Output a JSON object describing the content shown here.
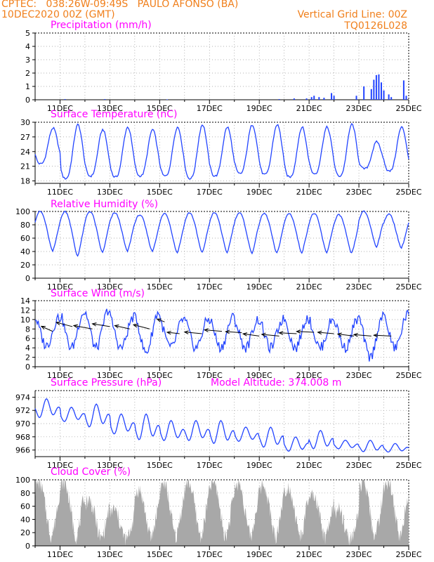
{
  "header": {
    "line1_left": "CPTEC:   038:26W-09:49S   PAULO AFONSO (BA)",
    "line2_left": "10DEC2020 00Z (GMT)",
    "line1_right": "Vertical Grid Line: 00Z",
    "line2_right": "TQ0126L028",
    "color": "#f07f1b"
  },
  "colors": {
    "title": "#ff00ff",
    "series": "#2244ff",
    "bars": "#2244ff",
    "cloud": "#a8a8a8",
    "wind_arrows": "#000000"
  },
  "date_ticks": [
    "11DEC",
    "13DEC",
    "15DEC",
    "17DEC",
    "19DEC",
    "21DEC",
    "23DEC",
    "25DEC"
  ],
  "chart_data": [
    {
      "id": "precip",
      "type": "bar",
      "title": "Precipitation (mm/h)",
      "x_start": "10DEC2020 00Z",
      "x_end": "25DEC2020 00Z",
      "ylim": [
        0,
        5
      ],
      "yticks": [
        0,
        1,
        2,
        3,
        4,
        5
      ],
      "events": [
        {
          "day": 11.2,
          "value": 0.05
        },
        {
          "day": 12.8,
          "value": 0.05
        },
        {
          "day": 15.3,
          "value": 0.03
        },
        {
          "day": 19.8,
          "value": 0.05
        },
        {
          "day": 20.4,
          "value": 0.1
        },
        {
          "day": 20.9,
          "value": 0.1
        },
        {
          "day": 21.1,
          "value": 0.2
        },
        {
          "day": 21.2,
          "value": 0.3
        },
        {
          "day": 21.4,
          "value": 0.2
        },
        {
          "day": 21.6,
          "value": 0.15
        },
        {
          "day": 21.9,
          "value": 0.5
        },
        {
          "day": 22.0,
          "value": 0.3
        },
        {
          "day": 22.9,
          "value": 0.3
        },
        {
          "day": 23.2,
          "value": 1.0
        },
        {
          "day": 23.5,
          "value": 0.8
        },
        {
          "day": 23.6,
          "value": 1.5
        },
        {
          "day": 23.7,
          "value": 1.85
        },
        {
          "day": 23.8,
          "value": 1.9
        },
        {
          "day": 23.9,
          "value": 1.3
        },
        {
          "day": 24.0,
          "value": 0.7
        },
        {
          "day": 24.2,
          "value": 0.4
        },
        {
          "day": 24.3,
          "value": 0.2
        },
        {
          "day": 24.8,
          "value": 1.45
        },
        {
          "day": 24.9,
          "value": 0.3
        }
      ]
    },
    {
      "id": "temp",
      "type": "line",
      "title": "Surface Temperature (nC)",
      "ylim": [
        17.5,
        30
      ],
      "yticks": [
        18,
        21,
        24,
        27,
        30
      ],
      "daily_max": [
        28.8,
        29.5,
        28.5,
        29.0,
        28.5,
        29.0,
        29.5,
        29.0,
        29.5,
        29.5,
        29.0,
        29.0,
        29.6,
        26.0,
        29.0
      ],
      "daily_min": [
        21.5,
        18.5,
        19.0,
        18.8,
        19.0,
        19.0,
        18.5,
        19.0,
        19.5,
        19.3,
        18.8,
        19.5,
        19.0,
        20.5,
        20.0
      ]
    },
    {
      "id": "rh",
      "type": "line",
      "title": "Relative Humidity (%)",
      "ylim": [
        0,
        100
      ],
      "yticks": [
        0,
        20,
        40,
        60,
        80,
        100
      ],
      "daily_max": [
        100,
        100,
        100,
        98,
        95,
        97,
        98,
        98,
        98,
        97,
        97,
        97,
        95,
        100,
        96
      ],
      "daily_min": [
        40,
        33,
        38,
        40,
        40,
        38,
        38,
        38,
        37,
        37,
        38,
        38,
        37,
        47,
        45
      ]
    },
    {
      "id": "wind",
      "type": "line",
      "title": "Surface Wind (m/s)",
      "ylim": [
        0,
        14
      ],
      "yticks": [
        0,
        2,
        4,
        6,
        8,
        10,
        12,
        14
      ],
      "daily_max": [
        10.5,
        11.5,
        12.0,
        10.5,
        11.5,
        10.0,
        10.0,
        10.5,
        10.0,
        10.0,
        10.5,
        10.0,
        10.0,
        10.5,
        11.0
      ],
      "daily_min": [
        4.5,
        4.0,
        4.0,
        4.0,
        3.0,
        4.0,
        4.0,
        4.0,
        4.0,
        4.0,
        4.0,
        4.0,
        4.0,
        2.0,
        4.0
      ],
      "arrows": [
        {
          "day": 10.7,
          "speed_y": 7.5,
          "dx": -0.9,
          "dy": 1.8
        },
        {
          "day": 11.5,
          "speed_y": 8.5,
          "dx": -1.3,
          "dy": 1.5
        },
        {
          "day": 12.3,
          "speed_y": 8.0,
          "dx": -1.5,
          "dy": 1.2
        },
        {
          "day": 13.0,
          "speed_y": 8.5,
          "dx": -1.4,
          "dy": 1.0
        },
        {
          "day": 13.8,
          "speed_y": 8.0,
          "dx": -1.2,
          "dy": 1.2
        },
        {
          "day": 14.6,
          "speed_y": 8.0,
          "dx": -1.3,
          "dy": 1.5
        },
        {
          "day": 15.2,
          "speed_y": 9.5,
          "dx": -0.6,
          "dy": 1.0
        },
        {
          "day": 15.8,
          "speed_y": 7.0,
          "dx": -1.0,
          "dy": 0.5
        },
        {
          "day": 16.7,
          "speed_y": 7.0,
          "dx": -1.4,
          "dy": 0.6
        },
        {
          "day": 17.5,
          "speed_y": 7.5,
          "dx": -1.4,
          "dy": 0.5
        },
        {
          "day": 18.3,
          "speed_y": 7.2,
          "dx": -1.3,
          "dy": 0.4
        },
        {
          "day": 19.0,
          "speed_y": 6.5,
          "dx": -1.3,
          "dy": 0.8
        },
        {
          "day": 19.8,
          "speed_y": 6.5,
          "dx": -1.4,
          "dy": 0.6
        },
        {
          "day": 20.5,
          "speed_y": 7.0,
          "dx": -1.4,
          "dy": 0.3
        },
        {
          "day": 21.2,
          "speed_y": 7.3,
          "dx": -1.4,
          "dy": 0.3
        },
        {
          "day": 22.0,
          "speed_y": 7.0,
          "dx": -1.3,
          "dy": 0.5
        },
        {
          "day": 22.8,
          "speed_y": 6.5,
          "dx": -1.3,
          "dy": 0.7
        },
        {
          "day": 23.5,
          "speed_y": 6.5,
          "dx": -1.4,
          "dy": 0.5
        },
        {
          "day": 24.3,
          "speed_y": 6.5,
          "dx": -1.4,
          "dy": 0.3
        }
      ]
    },
    {
      "id": "pres",
      "type": "line",
      "title": "Surface Pressure (hPa)",
      "annotation": "Model Altitude: 374.008  m",
      "ylim": [
        965,
        975
      ],
      "yticks": [
        966,
        968,
        970,
        972,
        974
      ],
      "daily_max": [
        973.8,
        972.5,
        973.0,
        971.5,
        971.5,
        970.5,
        970.5,
        970.5,
        969.5,
        969.5,
        968.0,
        969.0,
        967.5,
        967.5,
        967.0
      ],
      "daily_min": [
        970.5,
        970.0,
        969.0,
        968.0,
        967.0,
        967.0,
        967.0,
        966.5,
        967.0,
        966.0,
        965.5,
        965.8,
        966.0,
        965.5,
        965.5
      ]
    },
    {
      "id": "cloud",
      "type": "area",
      "title": "Cloud Cover (%)",
      "ylim": [
        0,
        100
      ],
      "yticks": [
        0,
        20,
        40,
        60,
        80,
        100
      ],
      "daily_peak": [
        97,
        97,
        70,
        55,
        85,
        95,
        97,
        97,
        95,
        93,
        90,
        75,
        55,
        97,
        97
      ]
    }
  ]
}
